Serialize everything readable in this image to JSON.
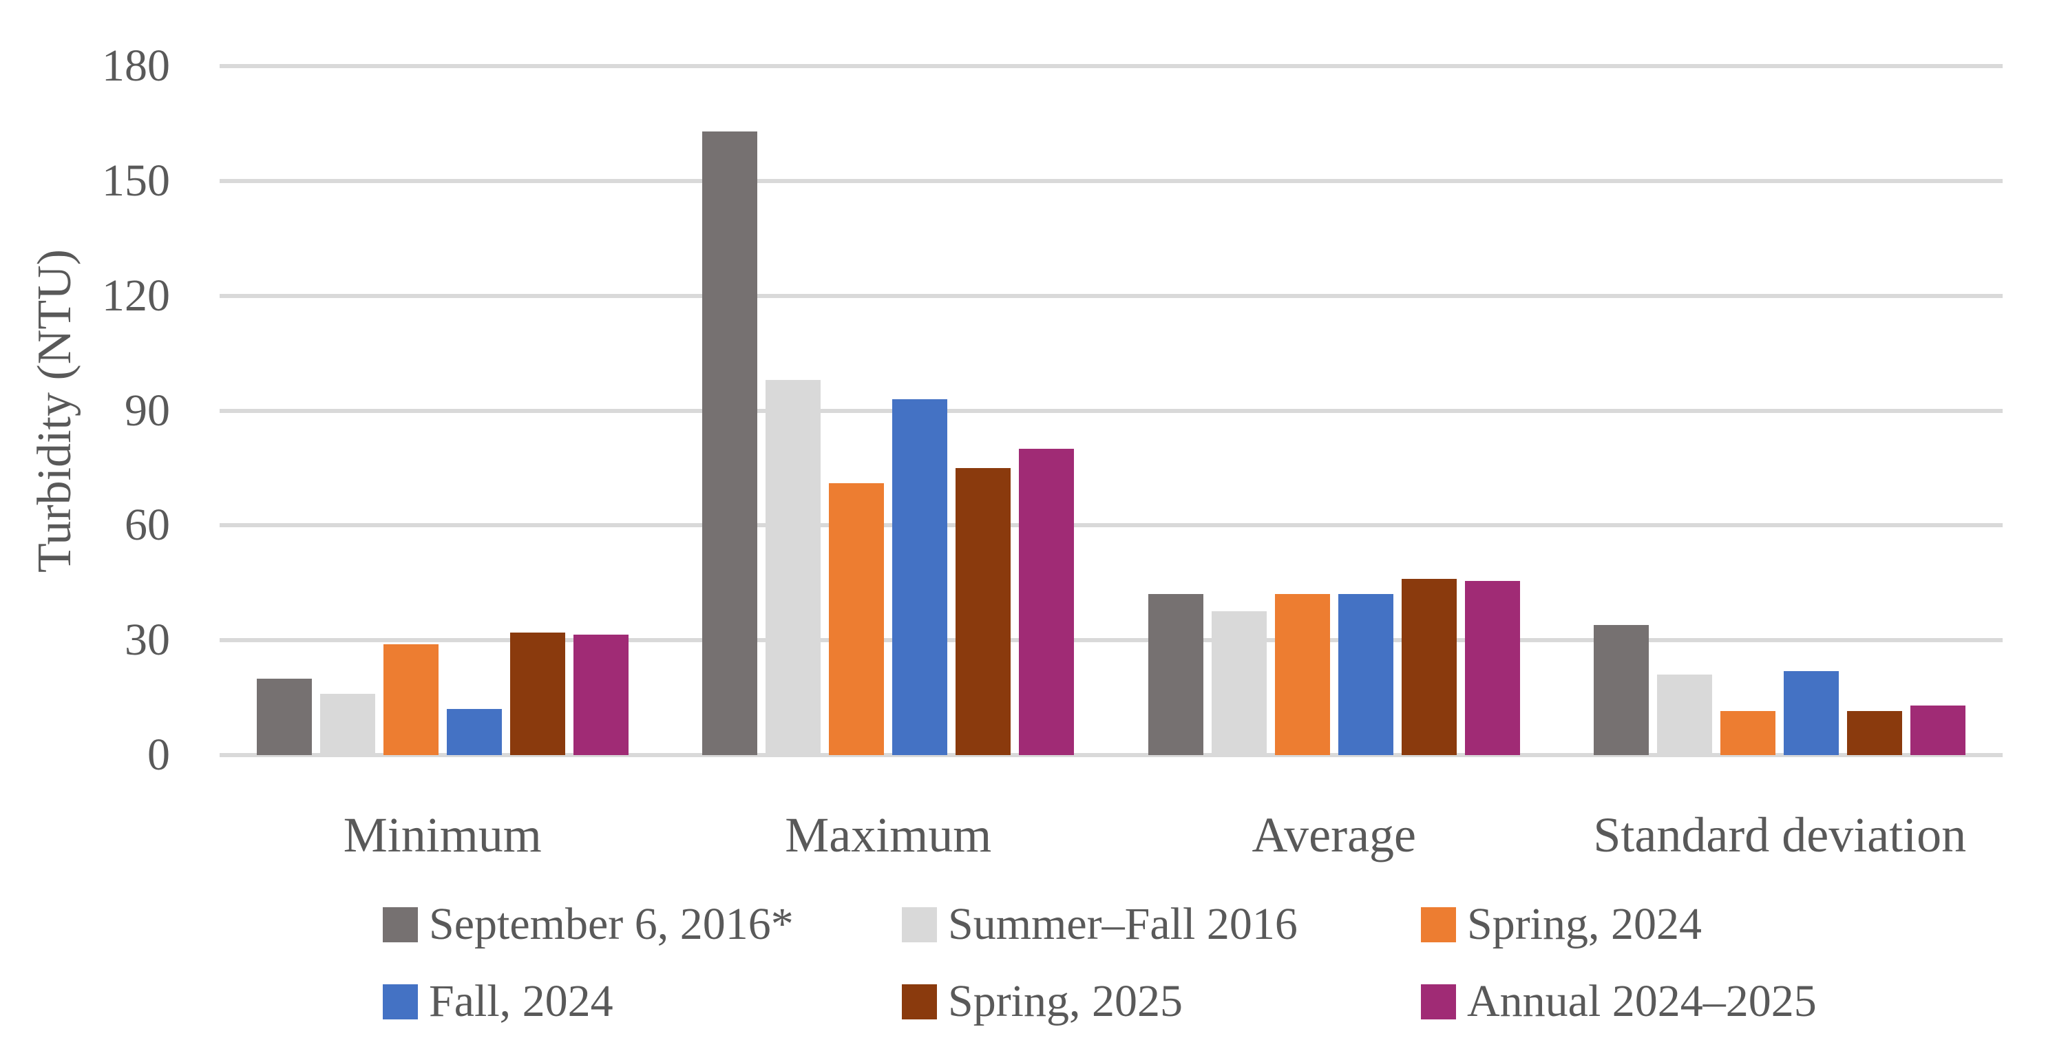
{
  "colors": {
    "text": "#595959",
    "gridline": "#D9D9D9",
    "background": "#FFFFFF"
  },
  "chart_data": {
    "type": "bar",
    "title": "",
    "xlabel": "",
    "ylabel": "Turbidity (NTU)",
    "ylim": [
      0,
      180
    ],
    "yticks": [
      0,
      30,
      60,
      90,
      120,
      150,
      180
    ],
    "grid": true,
    "legend_position": "bottom",
    "categories": [
      "Minimum",
      "Maximum",
      "Average",
      "Standard deviation"
    ],
    "series": [
      {
        "name": "September 6, 2016*",
        "color": "#767171",
        "values": [
          20,
          163,
          42,
          34
        ]
      },
      {
        "name": "Summer–Fall 2016",
        "color": "#D9D9D9",
        "values": [
          16,
          98,
          37.5,
          21
        ]
      },
      {
        "name": "Spring, 2024",
        "color": "#ED7D31",
        "values": [
          29,
          71,
          42,
          11.5
        ]
      },
      {
        "name": "Fall, 2024",
        "color": "#4472C4",
        "values": [
          12,
          93,
          42,
          22
        ]
      },
      {
        "name": "Spring, 2025",
        "color": "#8A3A0D",
        "values": [
          32,
          75,
          46,
          11.5
        ]
      },
      {
        "name": "Annual 2024–2025",
        "color": "#A02B75",
        "values": [
          31.5,
          80,
          45.5,
          13
        ]
      }
    ]
  }
}
